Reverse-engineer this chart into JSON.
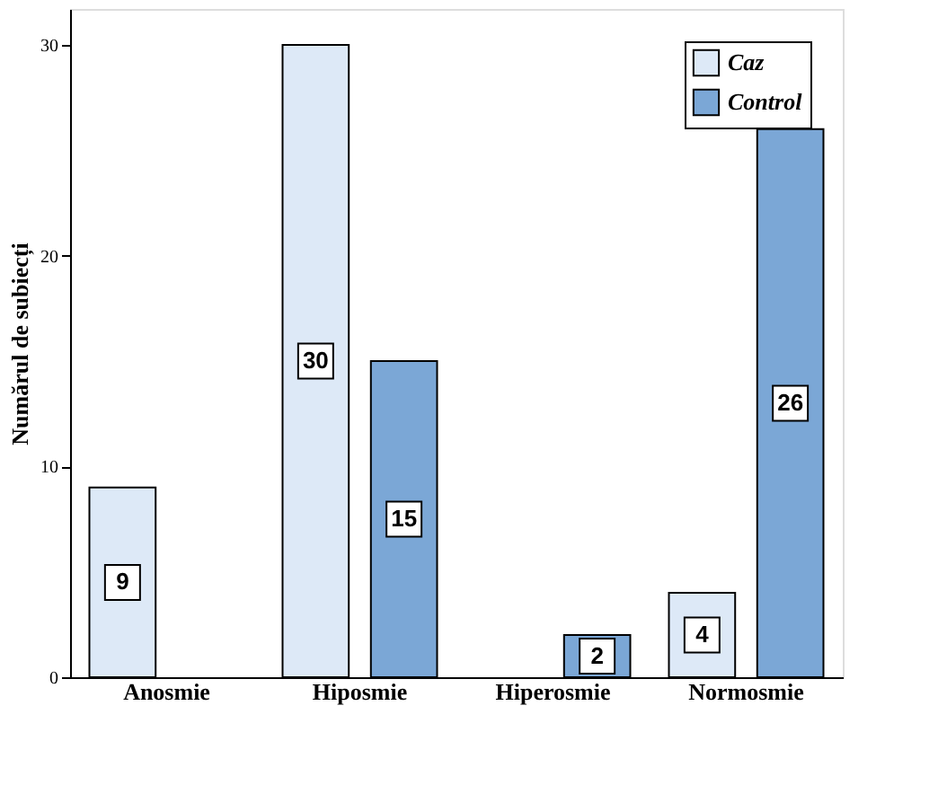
{
  "chart_data": {
    "type": "bar",
    "ylabel": "Numărul de subiecți",
    "categories": [
      "Anosmie",
      "Hiposmie",
      "Hiperosmie",
      "Normosmie"
    ],
    "series": [
      {
        "name": "Caz",
        "color": "#dde9f7",
        "values": [
          9,
          30,
          null,
          4
        ]
      },
      {
        "name": "Control",
        "color": "#7ba7d6",
        "values": [
          null,
          15,
          2,
          26
        ]
      }
    ],
    "ylim": [
      0,
      31.7
    ],
    "yticks": [
      0,
      10,
      20,
      30
    ],
    "grid": false,
    "legend": "top right",
    "data_labels": true
  }
}
